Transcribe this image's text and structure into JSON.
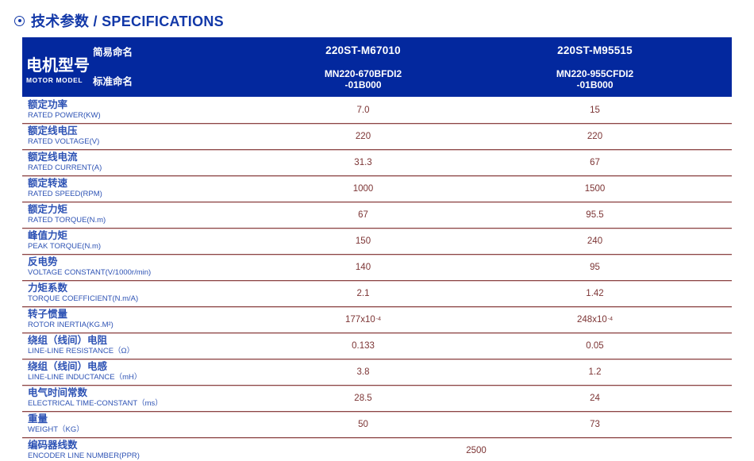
{
  "page_title": {
    "text": "技术参数 / SPECIFICATIONS"
  },
  "table": {
    "header": {
      "motor_model_zh": "电机型号",
      "motor_model_en": "MOTOR MODEL",
      "simple_name_label": "简易命名",
      "standard_name_label": "标准命名",
      "columns": [
        {
          "simple_name": "220ST-M67010",
          "standard_name_line1": "MN220-670BFDI2",
          "standard_name_line2": "-01B000"
        },
        {
          "simple_name": "220ST-M95515",
          "standard_name_line1": "MN220-955CFDI2",
          "standard_name_line2": "-01B000"
        }
      ]
    },
    "rows": [
      {
        "zh": "额定功率",
        "en": "RATED POWER(KW)",
        "values": [
          "7.0",
          "15"
        ]
      },
      {
        "zh": "额定线电压",
        "en": "RATED VOLTAGE(V)",
        "values": [
          "220",
          "220"
        ]
      },
      {
        "zh": "额定线电流",
        "en": "RATED CURRENT(A)",
        "values": [
          "31.3",
          "67"
        ]
      },
      {
        "zh": "额定转速",
        "en": "RATED SPEED(RPM)",
        "values": [
          "1000",
          "1500"
        ]
      },
      {
        "zh": "额定力矩",
        "en": "RATED TORQUE(N.m)",
        "values": [
          "67",
          "95.5"
        ]
      },
      {
        "zh": "峰值力矩",
        "en": "PEAK TORQUE(N.m)",
        "values": [
          "150",
          "240"
        ]
      },
      {
        "zh": "反电势",
        "en": "VOLTAGE CONSTANT(V/1000r/min)",
        "values": [
          "140",
          "95"
        ]
      },
      {
        "zh": "力矩系数",
        "en": "TORQUE COEFFICIENT(N.m/A)",
        "values": [
          "2.1",
          "1.42"
        ]
      },
      {
        "zh": "转子惯量",
        "en": "ROTOR INERTIA(KG.M²)",
        "values": [
          "177x10^-4",
          "248x10^-4"
        ]
      },
      {
        "zh": "绕组（线间）电阻",
        "en": "LINE-LINE RESISTANCE（Ω）",
        "values": [
          "0.133",
          "0.05"
        ]
      },
      {
        "zh": "绕组（线间）电感",
        "en": "LINE-LINE INDUCTANCE（mH）",
        "values": [
          "3.8",
          "1.2"
        ]
      },
      {
        "zh": "电气时间常数",
        "en": "ELECTRICAL TIME-CONSTANT（ms）",
        "values": [
          "28.5",
          "24"
        ]
      },
      {
        "zh": "重量",
        "en": "WEIGHT（KG）",
        "values": [
          "50",
          "73"
        ]
      },
      {
        "zh": "编码器线数",
        "en": "ENCODER LINE NUMBER(PPR)",
        "values": [
          "2500"
        ]
      }
    ]
  }
}
